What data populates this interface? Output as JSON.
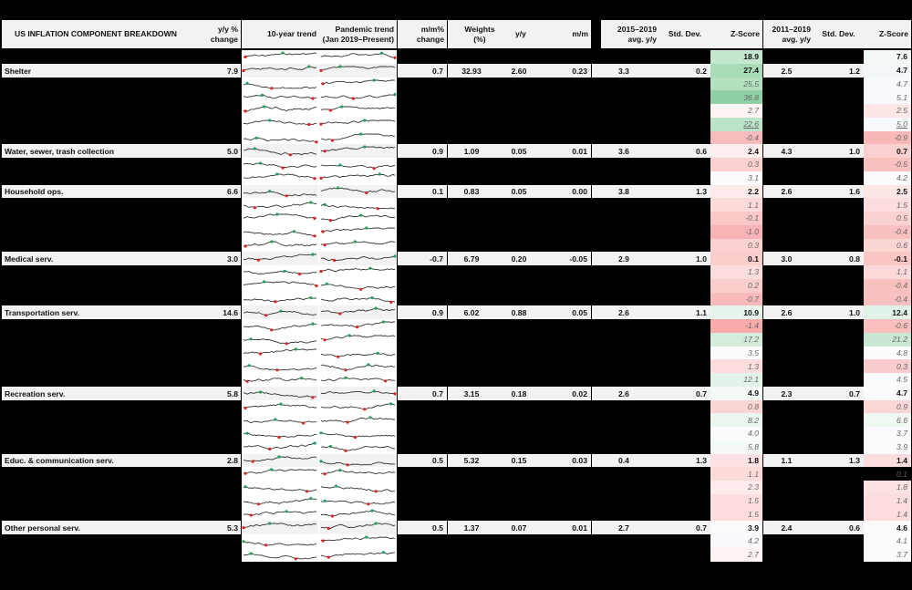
{
  "title": "US INFLATION COMPONENT BREAKDOWN",
  "headers": {
    "yy_change": [
      "y/y %",
      "change"
    ],
    "ten_year": "10-year trend",
    "pandemic": [
      "Pandemic trend",
      "(Jan 2019–Present)"
    ],
    "mm_change": [
      "m/m%",
      "change"
    ],
    "weights": [
      "Weights",
      "(%)"
    ],
    "yy": "y/y",
    "mm": "m/m",
    "avg1519": [
      "2015–2019",
      "avg. y/y"
    ],
    "std1": "Std. Dev.",
    "z1": "Z-Score",
    "avg1119": [
      "2011–2019",
      "avg. y/y"
    ],
    "std2": "Std. Dev.",
    "z2": "Z-Score"
  },
  "colors": {
    "header_bg": "#f2f2f2",
    "green_strong": "#8fd0a6",
    "green_mid": "#b8e2c5",
    "green_light": "#e3f3e8",
    "red_strong": "#f8b4b4",
    "red_mid": "#fbcaca",
    "red_light": "#fde4e4",
    "neutral": "#fbfbfd",
    "spark_min": "#e02020",
    "spark_max": "#20a060"
  },
  "rows": [
    {
      "type": "top",
      "z1": "18.9",
      "z2": "7.6",
      "z1c": "#c4e7cf",
      "z2c": "#f3f9f5"
    },
    {
      "type": "main",
      "label": "Shelter",
      "yy_change": "7.9",
      "mm_change": "0.7",
      "weights": "32.93",
      "yy": "2.60",
      "mm": "0.23",
      "avg1": "3.3",
      "std1": "0.2",
      "z1": "27.4",
      "avg2": "2.5",
      "std2": "1.2",
      "z2": "4.7",
      "z1c": "#a9dcb9",
      "z2c": "#f4f8fb"
    },
    {
      "type": "sub",
      "z1": "25.5",
      "z2": "4.7",
      "z1c": "#b3e0c1",
      "z2c": "#f7f9fc"
    },
    {
      "type": "sub",
      "z1": "36.8",
      "z2": "5.1",
      "z1c": "#8fd0a6",
      "z2c": "#f7f9fc"
    },
    {
      "type": "sub",
      "z1": "2.7",
      "z2": "2.5",
      "z1c": "#fdf4f4",
      "z2c": "#fde6e6"
    },
    {
      "type": "sub",
      "z1": "22.6",
      "z2": "5.0",
      "z1c": "#bce4c8",
      "z2c": "#f7f9fc",
      "underline": true
    },
    {
      "type": "sub",
      "z1": "-0.4",
      "z2": "-0.9",
      "z1c": "#f9bcbc",
      "z2c": "#f8b8b8"
    },
    {
      "type": "main",
      "label": "Water, sewer, trash collection",
      "yy_change": "5.0",
      "mm_change": "0.9",
      "weights": "1.09",
      "yy": "0.05",
      "mm": "0.01",
      "avg1": "3.6",
      "std1": "0.6",
      "z1": "2.4",
      "avg2": "4.3",
      "std2": "1.0",
      "z2": "0.7",
      "z1c": "#fdeeee",
      "z2c": "#fbd0d0"
    },
    {
      "type": "sub",
      "z1": "0.3",
      "z2": "-0.5",
      "z1c": "#fbd0d0",
      "z2c": "#f9c0c0"
    },
    {
      "type": "sub",
      "z1": "3.1",
      "z2": "4.2",
      "z1c": "#fbfbfd",
      "z2c": "#fbfbfd"
    },
    {
      "type": "main",
      "label": "Household ops.",
      "yy_change": "6.6",
      "mm_change": "0.1",
      "weights": "0.83",
      "yy": "0.05",
      "mm": "0.00",
      "avg1": "3.8",
      "std1": "1.3",
      "z1": "2.2",
      "avg2": "2.6",
      "std2": "1.6",
      "z2": "2.5",
      "z1c": "#fdeaea",
      "z2c": "#fde6e6"
    },
    {
      "type": "sub",
      "z1": "1.1",
      "z2": "1.5",
      "z1c": "#fcdada",
      "z2c": "#fcdcdc"
    },
    {
      "type": "sub",
      "z1": "-0.1",
      "z2": "0.5",
      "z1c": "#fac8c8",
      "z2c": "#fbd2d2"
    },
    {
      "type": "sub",
      "z1": "-1.0",
      "z2": "-0.4",
      "z1c": "#f8b4b4",
      "z2c": "#f9c0c0"
    },
    {
      "type": "sub",
      "z1": "0.3",
      "z2": "0.6",
      "z1c": "#fbd0d0",
      "z2c": "#fbd4d4"
    },
    {
      "type": "main",
      "label": "Medical serv.",
      "yy_change": "3.0",
      "mm_change": "-0.7",
      "weights": "6.79",
      "yy": "0.20",
      "mm": "-0.05",
      "avg1": "2.9",
      "std1": "1.0",
      "z1": "0.1",
      "avg2": "3.0",
      "std2": "0.8",
      "z2": "-0.1",
      "z1c": "#fbcece",
      "z2c": "#fac6c6"
    },
    {
      "type": "sub",
      "z1": "1.3",
      "z2": "1.1",
      "z1c": "#fcdcdc",
      "z2c": "#fcd8d8"
    },
    {
      "type": "sub",
      "z1": "0.2",
      "z2": "-0.4",
      "z1c": "#fbcece",
      "z2c": "#f9c0c0"
    },
    {
      "type": "sub",
      "z1": "-0.7",
      "z2": "-0.4",
      "z1c": "#f9baba",
      "z2c": "#f9c0c0"
    },
    {
      "type": "main",
      "label": "Transportation serv.",
      "yy_change": "14.6",
      "mm_change": "0.9",
      "weights": "6.02",
      "yy": "0.88",
      "mm": "0.05",
      "avg1": "2.6",
      "std1": "1.1",
      "z1": "10.9",
      "avg2": "2.6",
      "std2": "1.0",
      "z2": "12.4",
      "z1c": "#e6f4ea",
      "z2c": "#e1f2e6"
    },
    {
      "type": "sub",
      "z1": "-1.4",
      "z2": "-0.6",
      "z1c": "#f7aaaa",
      "z2c": "#f9bebe"
    },
    {
      "type": "sub",
      "z1": "17.2",
      "z2": "21.2",
      "z1c": "#d3ecdb",
      "z2c": "#c9e8d3"
    },
    {
      "type": "sub",
      "z1": "3.5",
      "z2": "4.8",
      "z1c": "#fbfbfd",
      "z2c": "#fbfbfd"
    },
    {
      "type": "sub",
      "z1": "1.3",
      "z2": "0.3",
      "z1c": "#fcdcdc",
      "z2c": "#faccce"
    },
    {
      "type": "sub",
      "z1": "12.1",
      "z2": "4.5",
      "z1c": "#e3f3e8",
      "z2c": "#fbfbfd"
    },
    {
      "type": "main",
      "label": "Recreation serv.",
      "yy_change": "5.8",
      "mm_change": "0.7",
      "weights": "3.15",
      "yy": "0.18",
      "mm": "0.02",
      "avg1": "2.6",
      "std1": "0.7",
      "z1": "4.9",
      "avg2": "2.3",
      "std2": "0.7",
      "z2": "4.7",
      "z1c": "#f4f9f6",
      "z2c": "#fbfbfd"
    },
    {
      "type": "sub",
      "z1": "0.8",
      "z2": "0.9",
      "z1c": "#fbd4d4",
      "z2c": "#fbd6d6"
    },
    {
      "type": "sub",
      "z1": "8.2",
      "z2": "6.6",
      "z1c": "#ebf6ee",
      "z2c": "#f0f8f2"
    },
    {
      "type": "sub",
      "z1": "4.0",
      "z2": "3.7",
      "z1c": "#fbfbfd",
      "z2c": "#fbfbfd"
    },
    {
      "type": "sub",
      "z1": "5.8",
      "z2": "3.9",
      "z1c": "#f3f9f5",
      "z2c": "#fbfbfd"
    },
    {
      "type": "main",
      "label": "Educ. & communication serv.",
      "yy_change": "2.8",
      "mm_change": "0.5",
      "weights": "5.32",
      "yy": "0.15",
      "mm": "0.03",
      "avg1": "0.4",
      "std1": "1.3",
      "z1": "1.8",
      "avg2": "1.1",
      "std2": "1.3",
      "z2": "1.4",
      "z1c": "#fce2e2",
      "z2c": "#fcdcdc"
    },
    {
      "type": "sub",
      "z1": "1.1",
      "z2": "0.1",
      "z1c": "#fcdada",
      "z2c": "#faca ca"
    },
    {
      "type": "sub",
      "z1": "2.3",
      "z2": "1.8",
      "z1c": "#fdeaea",
      "z2c": "#fde2e2"
    },
    {
      "type": "sub",
      "z1": "1.5",
      "z2": "1.4",
      "z1c": "#fcdede",
      "z2c": "#fcdcdc"
    },
    {
      "type": "sub",
      "z1": "1.5",
      "z2": "1.4",
      "z1c": "#fcdede",
      "z2c": "#fcdcdc"
    },
    {
      "type": "main",
      "label": "Other personal serv.",
      "yy_change": "5.3",
      "mm_change": "0.5",
      "weights": "1.37",
      "yy": "0.07",
      "mm": "0.01",
      "avg1": "2.7",
      "std1": "0.7",
      "z1": "3.9",
      "avg2": "2.4",
      "std2": "0.6",
      "z2": "4.6",
      "z1c": "#fbfbfd",
      "z2c": "#fbfbfd"
    },
    {
      "type": "sub",
      "z1": "4.2",
      "z2": "4.1",
      "z1c": "#f8f9fc",
      "z2c": "#fbfbfd"
    },
    {
      "type": "sub",
      "z1": "2.7",
      "z2": "3.7",
      "z1c": "#fdf3f3",
      "z2c": "#fbfbfd"
    }
  ]
}
